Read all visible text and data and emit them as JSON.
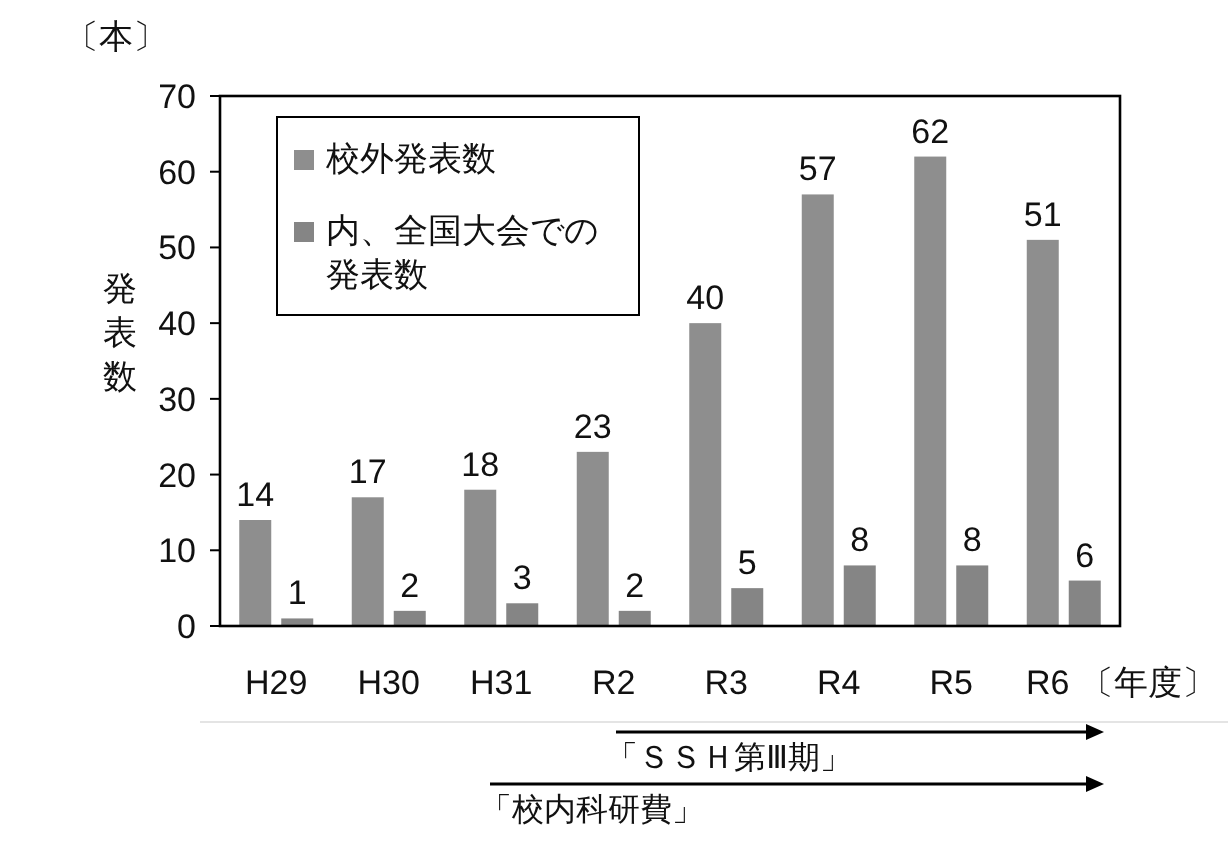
{
  "chart_data": {
    "type": "bar",
    "ylabel": "発表数",
    "xlabel": "〔年度〕",
    "categories": [
      "H29",
      "H30",
      "H31",
      "R2",
      "R3",
      "R4",
      "R5",
      "R6"
    ],
    "series": [
      {
        "name": "校外発表数",
        "color": "#8e8e8e",
        "values": [
          14,
          17,
          18,
          23,
          40,
          57,
          62,
          51
        ]
      },
      {
        "name": "内、全国大会での発表数",
        "color": "#858585",
        "values": [
          1,
          2,
          3,
          2,
          5,
          8,
          8,
          6
        ]
      }
    ],
    "ylim": [
      0,
      70
    ],
    "yticks": [
      0,
      10,
      20,
      30,
      40,
      50,
      60,
      70
    ],
    "data_labels": true,
    "legend": "top left",
    "grid": false,
    "annotations": [
      "〔本〕",
      "「ＳＳＨ第Ⅲ期」",
      "「校内科研費」"
    ]
  }
}
